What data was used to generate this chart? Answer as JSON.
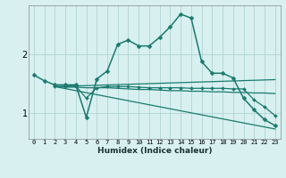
{
  "xlabel": "Humidex (Indice chaleur)",
  "ylabel": "",
  "bg_color": "#d8f0f0",
  "grid_color": "#b0d4d4",
  "line_color": "#1a7a6e",
  "xlim": [
    -0.5,
    23.5
  ],
  "ylim": [
    0.55,
    2.85
  ],
  "yticks": [
    1,
    2
  ],
  "xticks": [
    0,
    1,
    2,
    3,
    4,
    5,
    6,
    7,
    8,
    9,
    10,
    11,
    12,
    13,
    14,
    15,
    16,
    17,
    18,
    19,
    20,
    21,
    22,
    23
  ],
  "series": [
    {
      "x": [
        0,
        1,
        2,
        3,
        4,
        5,
        6,
        7,
        8,
        9,
        10,
        11,
        12,
        13,
        14,
        15,
        16,
        17,
        18,
        19,
        20,
        21,
        22,
        23
      ],
      "y": [
        1.65,
        1.55,
        1.48,
        1.48,
        1.48,
        0.92,
        1.58,
        1.72,
        2.18,
        2.25,
        2.15,
        2.15,
        2.3,
        2.48,
        2.7,
        2.63,
        1.88,
        1.68,
        1.68,
        1.6,
        1.25,
        1.05,
        0.88,
        0.78
      ],
      "marker": "D",
      "markersize": 2.5,
      "linewidth": 1.1,
      "has_marker": true
    },
    {
      "x": [
        2,
        3,
        4,
        5,
        6,
        7,
        8,
        9,
        10,
        11,
        12,
        13,
        14,
        15,
        16,
        17,
        18,
        19,
        20,
        21,
        22,
        23
      ],
      "y": [
        1.45,
        1.44,
        1.44,
        1.43,
        1.43,
        1.43,
        1.42,
        1.41,
        1.4,
        1.4,
        1.39,
        1.38,
        1.38,
        1.37,
        1.37,
        1.36,
        1.36,
        1.35,
        1.35,
        1.34,
        1.34,
        1.33
      ],
      "marker": null,
      "markersize": 0,
      "linewidth": 0.9,
      "has_marker": false
    },
    {
      "x": [
        2,
        3,
        4,
        5,
        6,
        7,
        8,
        9,
        10,
        11,
        12,
        13,
        14,
        15,
        16,
        17,
        18,
        19,
        20,
        21,
        22,
        23
      ],
      "y": [
        1.45,
        1.45,
        1.46,
        1.25,
        1.43,
        1.45,
        1.45,
        1.45,
        1.44,
        1.43,
        1.43,
        1.43,
        1.43,
        1.42,
        1.42,
        1.42,
        1.42,
        1.41,
        1.41,
        1.22,
        1.1,
        0.95
      ],
      "marker": "D",
      "markersize": 2.0,
      "linewidth": 0.9,
      "has_marker": true
    },
    {
      "x": [
        2,
        23
      ],
      "y": [
        1.45,
        1.57
      ],
      "marker": null,
      "markersize": 0,
      "linewidth": 0.9,
      "has_marker": false
    },
    {
      "x": [
        2,
        23
      ],
      "y": [
        1.45,
        0.72
      ],
      "marker": null,
      "markersize": 0,
      "linewidth": 0.9,
      "has_marker": false
    }
  ]
}
